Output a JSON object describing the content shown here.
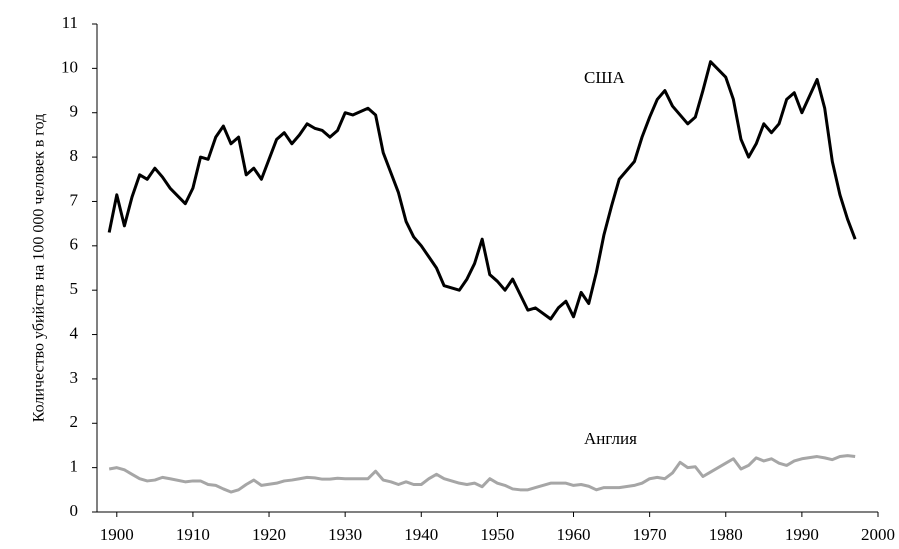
{
  "chart_data": {
    "type": "line",
    "ylabel": "Количество убийств на 100 000 человек в год",
    "annotations": [
      "США",
      "Англия"
    ],
    "x": [
      1899,
      1900,
      1901,
      1902,
      1903,
      1904,
      1905,
      1906,
      1907,
      1909,
      1910,
      1911,
      1912,
      1913,
      1914,
      1915,
      1916,
      1917,
      1918,
      1919,
      1921,
      1922,
      1923,
      1924,
      1925,
      1926,
      1927,
      1928,
      1929,
      1930,
      1931,
      1933,
      1934,
      1935,
      1936,
      1937,
      1938,
      1939,
      1940,
      1941,
      1942,
      1943,
      1945,
      1946,
      1947,
      1948,
      1949,
      1950,
      1951,
      1952,
      1953,
      1954,
      1955,
      1957,
      1958,
      1959,
      1960,
      1961,
      1962,
      1963,
      1964,
      1965,
      1966,
      1968,
      1969,
      1970,
      1971,
      1972,
      1973,
      1974,
      1975,
      1976,
      1977,
      1978,
      1980,
      1981,
      1982,
      1983,
      1984,
      1985,
      1986,
      1987,
      1988,
      1989,
      1990,
      1992,
      1993,
      1994,
      1995,
      1996,
      1997
    ],
    "series": [
      {
        "name": "США",
        "color": "#000000",
        "values": [
          6.3,
          7.15,
          6.45,
          7.1,
          7.6,
          7.5,
          7.75,
          7.55,
          7.3,
          6.95,
          7.3,
          8.0,
          7.95,
          8.45,
          8.7,
          8.3,
          8.45,
          7.6,
          7.75,
          7.5,
          8.4,
          8.55,
          8.3,
          8.5,
          8.75,
          8.65,
          8.6,
          8.45,
          8.6,
          9.0,
          8.95,
          9.1,
          8.95,
          8.1,
          7.65,
          7.2,
          6.55,
          6.2,
          6.0,
          5.75,
          5.5,
          5.1,
          5.0,
          5.25,
          5.6,
          6.15,
          5.35,
          5.2,
          5.0,
          5.25,
          4.9,
          4.55,
          4.6,
          4.35,
          4.6,
          4.75,
          4.4,
          4.95,
          4.7,
          5.4,
          6.25,
          6.9,
          7.5,
          7.9,
          8.45,
          8.9,
          9.3,
          9.5,
          9.15,
          8.95,
          8.75,
          8.9,
          9.5,
          10.15,
          9.8,
          9.3,
          8.4,
          8.0,
          8.3,
          8.75,
          8.55,
          8.75,
          9.3,
          9.45,
          9.0,
          9.75,
          9.1,
          7.9,
          7.15,
          6.6,
          6.15
        ]
      },
      {
        "name": "Англия",
        "color": "#a6a6a6",
        "values": [
          0.97,
          1.0,
          0.95,
          0.85,
          0.75,
          0.7,
          0.72,
          0.78,
          0.75,
          0.68,
          0.7,
          0.7,
          0.62,
          0.6,
          0.52,
          0.45,
          0.5,
          0.62,
          0.72,
          0.6,
          0.65,
          0.7,
          0.72,
          0.75,
          0.78,
          0.77,
          0.74,
          0.74,
          0.76,
          0.75,
          0.75,
          0.75,
          0.92,
          0.72,
          0.68,
          0.62,
          0.68,
          0.62,
          0.62,
          0.75,
          0.85,
          0.75,
          0.65,
          0.62,
          0.65,
          0.57,
          0.75,
          0.65,
          0.6,
          0.52,
          0.5,
          0.5,
          0.55,
          0.65,
          0.65,
          0.65,
          0.6,
          0.62,
          0.58,
          0.5,
          0.55,
          0.55,
          0.55,
          0.6,
          0.65,
          0.75,
          0.78,
          0.75,
          0.88,
          1.12,
          1.0,
          1.02,
          0.8,
          0.9,
          1.1,
          1.2,
          0.97,
          1.05,
          1.22,
          1.15,
          1.2,
          1.1,
          1.05,
          1.15,
          1.2,
          1.25,
          1.22,
          1.18,
          1.25,
          1.27,
          1.25
        ]
      }
    ],
    "xlim": [
      1897.4,
      2000
    ],
    "xticks": [
      1900,
      1910,
      1920,
      1930,
      1940,
      1950,
      1960,
      1970,
      1980,
      1990,
      2000
    ],
    "ylim": [
      0,
      11
    ],
    "yticks": [
      0,
      1,
      2,
      3,
      4,
      5,
      6,
      7,
      8,
      9,
      10,
      11
    ],
    "grid": false
  }
}
